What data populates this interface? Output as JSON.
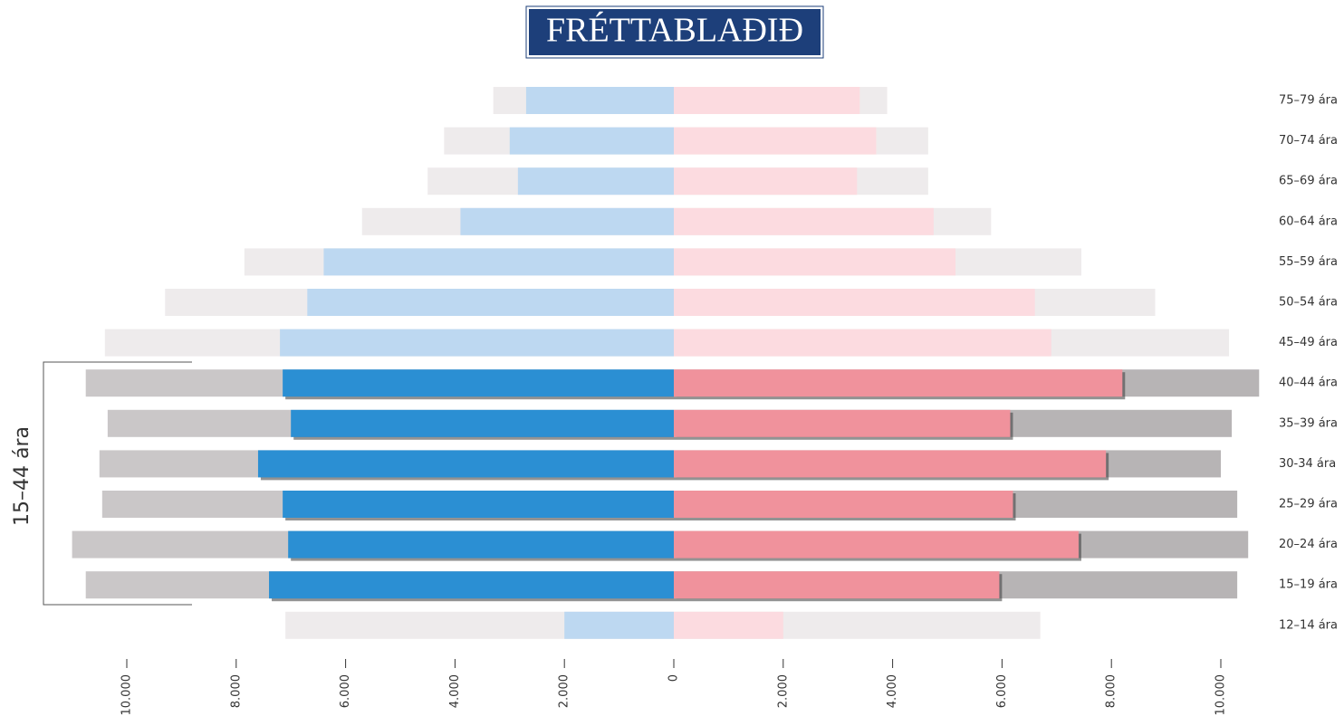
{
  "title": "FRÉTTABLAÐIÐ",
  "chart_data": {
    "type": "pyramid",
    "annotation": "15–44 ára",
    "highlight": [
      7,
      12
    ],
    "categories": [
      "75–79 ára",
      "70–74 ára",
      "65–69 ára",
      "60–64 ára",
      "55–59 ára",
      "50–54 ára",
      "45–49 ára",
      "40–44 ára",
      "35–39 ára",
      "30-34 ára",
      "25–29 ára",
      "20–24 ára",
      "15–19 ára",
      "12–14 ára"
    ],
    "series": [
      {
        "side": "left",
        "color": "#eeebec",
        "highlight_color": "#cac7c8",
        "values": [
          3300,
          4200,
          4500,
          5700,
          7850,
          9300,
          10400,
          10750,
          10350,
          10500,
          10450,
          11000,
          10750,
          7100
        ]
      },
      {
        "side": "left",
        "color": "#bdd8f1",
        "highlight_color": "#2b8fd3",
        "values": [
          2700,
          3000,
          2850,
          3900,
          6400,
          6700,
          7200,
          7150,
          7000,
          7600,
          7150,
          7050,
          7400,
          2000
        ]
      },
      {
        "side": "right",
        "color": "#eeebec",
        "highlight_color": "#b7b4b5",
        "values": [
          3900,
          4650,
          4650,
          5800,
          7450,
          8800,
          10150,
          10700,
          10200,
          10000,
          10300,
          10500,
          10300,
          6700
        ]
      },
      {
        "side": "right",
        "color": "#fcdbe0",
        "highlight_color": "#f0929c",
        "values": [
          3400,
          3700,
          3350,
          4750,
          5150,
          6600,
          6900,
          8200,
          6150,
          7900,
          6200,
          7400,
          5950,
          2000
        ]
      }
    ],
    "xticks_left": [
      {
        "value": 10000,
        "label": "10.000"
      },
      {
        "value": 8000,
        "label": "8.000"
      },
      {
        "value": 6000,
        "label": "6.000"
      },
      {
        "value": 4000,
        "label": "4.000"
      },
      {
        "value": 2000,
        "label": "2.000"
      }
    ],
    "xticks_right": [
      0,
      {
        "value": 2000,
        "label": "2.000"
      },
      {
        "value": 4000,
        "label": "4.000"
      },
      {
        "value": 6000,
        "label": "6.000"
      },
      {
        "value": 8000,
        "label": "8.000"
      },
      {
        "value": 10000,
        "label": "10.000"
      }
    ]
  }
}
